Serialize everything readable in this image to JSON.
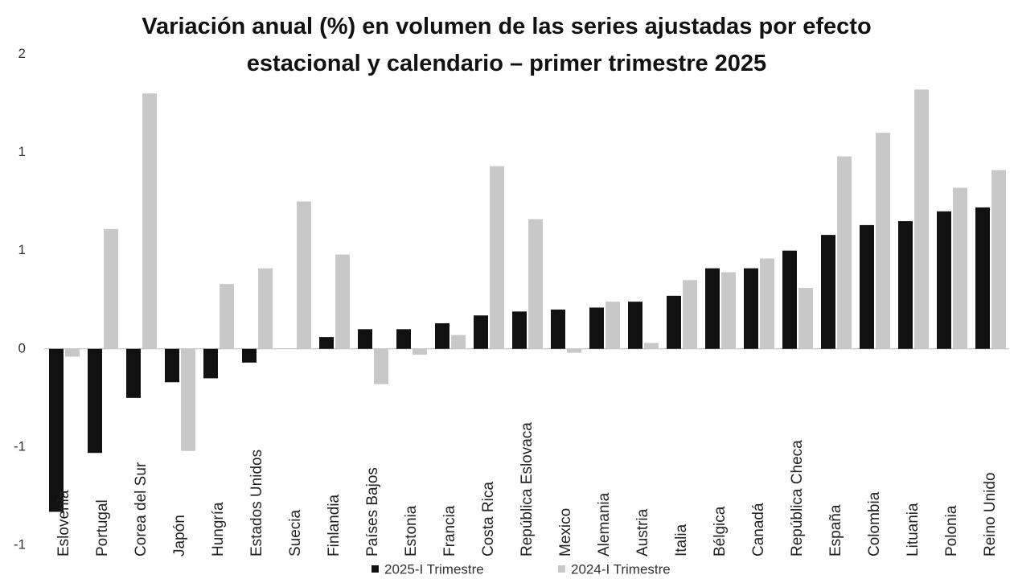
{
  "chart_data": {
    "type": "bar",
    "title": "Variación anual (%) en volumen de las series ajustadas por efecto estacional y calendario – primer trimestre 2025",
    "categories": [
      "Eslovenia",
      "Portugal",
      "Corea del Sur",
      "Japón",
      "Hungría",
      "Estados Unidos",
      "Suecia",
      "Finlandia",
      "Países Bajos",
      "Estonia",
      "Francia",
      "Costa Rica",
      "República Eslovaca",
      "Mexico",
      "Alemania",
      "Austria",
      "Italia",
      "Bélgica",
      "Canadá",
      "República Checa",
      "España",
      "Colombia",
      "Lituania",
      "Polonia",
      "Reino Unido"
    ],
    "series": [
      {
        "name": "2025-I Trimestre",
        "color": "#111111",
        "values": [
          -0.83,
          -0.53,
          -0.25,
          -0.17,
          -0.15,
          -0.07,
          0,
          0.06,
          0.1,
          0.1,
          0.13,
          0.17,
          0.19,
          0.2,
          0.21,
          0.24,
          0.27,
          0.41,
          0.41,
          0.5,
          0.58,
          0.63,
          0.65,
          0.7,
          0.72
        ]
      },
      {
        "name": "2024-I Trimestre",
        "color": "#c8c8c8",
        "values": [
          -0.04,
          0.61,
          1.3,
          -0.52,
          0.33,
          0.41,
          0.75,
          0.48,
          -0.18,
          -0.03,
          0.07,
          0.93,
          0.66,
          -0.02,
          0.24,
          0.03,
          0.35,
          0.39,
          0.46,
          0.31,
          0.98,
          1.1,
          1.32,
          0.82,
          0.91
        ]
      }
    ],
    "ylim": [
      -1,
      1.6
    ],
    "yticks": [
      {
        "value": 1.5,
        "label": "2"
      },
      {
        "value": 1,
        "label": "1"
      },
      {
        "value": 0.5,
        "label": "1"
      },
      0,
      {
        "value": -0.5,
        "label": "-1"
      },
      {
        "value": -1,
        "label": "-1"
      }
    ],
    "legend": "bottom"
  }
}
